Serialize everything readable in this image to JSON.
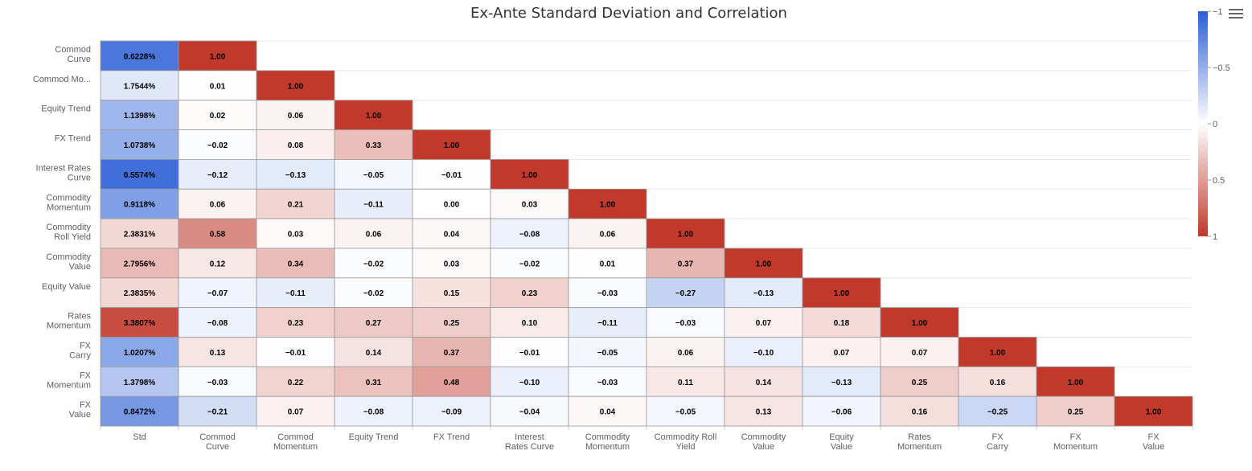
{
  "chart_data": {
    "type": "heatmap",
    "title": "Ex-Ante Standard Deviation and Correlation",
    "rows": [
      [
        "Commod",
        "Curve"
      ],
      [
        "Commod Mo..."
      ],
      [
        "Equity Trend"
      ],
      [
        "FX Trend"
      ],
      [
        "Interest Rates",
        "Curve"
      ],
      [
        "Commodity",
        "Momentum"
      ],
      [
        "Commodity",
        "Roll Yield"
      ],
      [
        "Commodity",
        "Value"
      ],
      [
        "Equity Value"
      ],
      [
        "Rates",
        "Momentum"
      ],
      [
        "FX",
        "Carry"
      ],
      [
        "FX",
        "Momentum"
      ],
      [
        "FX",
        "Value"
      ]
    ],
    "columns": [
      [
        "Std"
      ],
      [
        "Commod",
        "Curve"
      ],
      [
        "Commod",
        "Momentum"
      ],
      [
        "Equity Trend"
      ],
      [
        "FX Trend"
      ],
      [
        "Interest",
        "Rates Curve"
      ],
      [
        "Commodity",
        "Momentum"
      ],
      [
        "Commodity Roll",
        "Yield"
      ],
      [
        "Commodity",
        "Value"
      ],
      [
        "Equity",
        "Value"
      ],
      [
        "Rates",
        "Momentum"
      ],
      [
        "FX",
        "Carry"
      ],
      [
        "FX",
        "Momentum"
      ],
      [
        "FX",
        "Value"
      ]
    ],
    "std_labels": [
      "0.6228%",
      "1.7544%",
      "1.1398%",
      "1.0738%",
      "0.5574%",
      "0.9118%",
      "2.3831%",
      "2.7956%",
      "2.3835%",
      "3.3807%",
      "1.0207%",
      "1.3798%",
      "0.8472%"
    ],
    "std_color_values": [
      -0.85,
      -0.15,
      -0.45,
      -0.5,
      -0.9,
      -0.6,
      0.2,
      0.35,
      0.2,
      0.9,
      -0.55,
      -0.35,
      -0.65
    ],
    "correlations": [
      [
        1.0
      ],
      [
        0.01,
        1.0
      ],
      [
        0.02,
        0.06,
        1.0
      ],
      [
        -0.02,
        0.08,
        0.33,
        1.0
      ],
      [
        -0.12,
        -0.13,
        -0.05,
        -0.01,
        1.0
      ],
      [
        0.06,
        0.21,
        -0.11,
        0.0,
        0.03,
        1.0
      ],
      [
        0.58,
        0.03,
        0.06,
        0.04,
        -0.08,
        0.06,
        1.0
      ],
      [
        0.12,
        0.34,
        -0.02,
        0.03,
        -0.02,
        0.01,
        0.37,
        1.0
      ],
      [
        -0.07,
        -0.11,
        -0.02,
        0.15,
        0.23,
        -0.03,
        -0.27,
        -0.13,
        1.0
      ],
      [
        -0.08,
        0.23,
        0.27,
        0.25,
        0.1,
        -0.11,
        -0.03,
        0.07,
        0.18,
        1.0
      ],
      [
        0.13,
        -0.01,
        0.14,
        0.37,
        -0.01,
        -0.05,
        0.06,
        -0.1,
        0.07,
        0.07,
        1.0
      ],
      [
        -0.03,
        0.22,
        0.31,
        0.48,
        -0.1,
        -0.03,
        0.11,
        0.14,
        -0.13,
        0.25,
        0.16,
        1.0
      ],
      [
        -0.21,
        0.07,
        -0.08,
        -0.09,
        -0.04,
        0.04,
        -0.05,
        0.13,
        -0.06,
        0.16,
        -0.25,
        0.25,
        1.0
      ]
    ],
    "color_scale": {
      "min": -1,
      "max": 1,
      "ticks": [
        "-1",
        "-0.5",
        "0",
        "0.5",
        "1"
      ],
      "negative_color": "#2b5fd6",
      "zero_color": "#ffffff",
      "positive_color": "#c0392b"
    },
    "grid": true,
    "legend": "right"
  },
  "toolbar": {
    "menu_icon": "hamburger-menu-icon"
  }
}
